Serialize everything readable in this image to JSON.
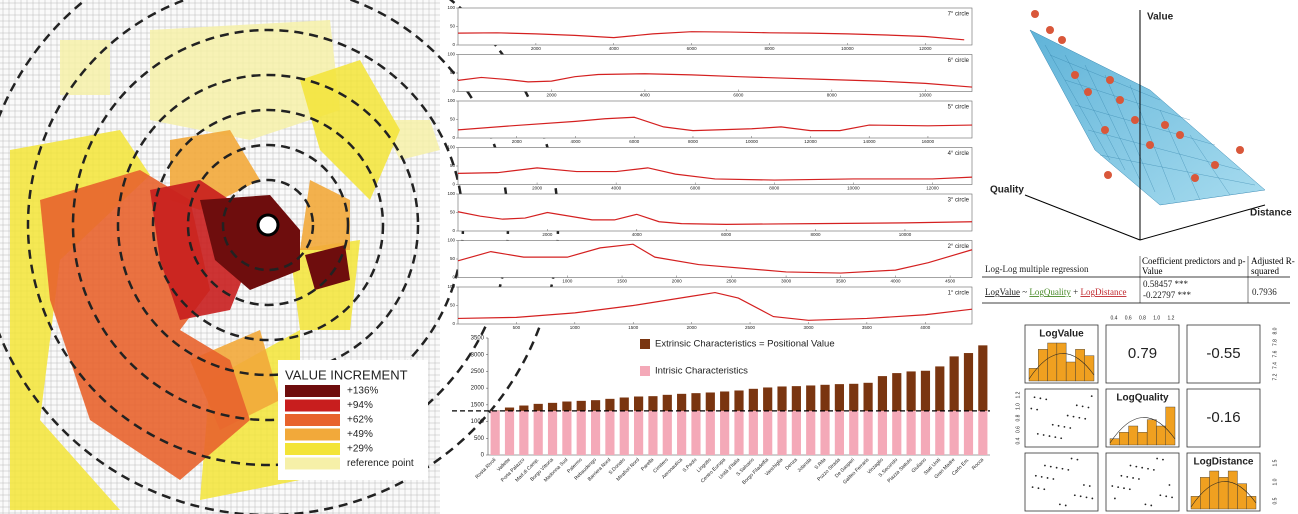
{
  "map": {
    "legend_title": "VALUE INCREMENT",
    "legend": [
      {
        "label": "+136%",
        "color": "#6e0d0d"
      },
      {
        "label": "+94%",
        "color": "#c81e1e"
      },
      {
        "label": "+62%",
        "color": "#e8632c"
      },
      {
        "label": "+49%",
        "color": "#f2a93a"
      },
      {
        "label": "+29%",
        "color": "#f3e436"
      },
      {
        "label": "reference point",
        "color": "#f6f0a8"
      }
    ]
  },
  "chart_data": [
    {
      "type": "line",
      "title": "7° circle",
      "color": "#d42020",
      "xlim": [
        0,
        13200
      ],
      "ylim": [
        0,
        100
      ],
      "yticks": [
        0,
        50,
        100
      ],
      "xticks": [
        2000,
        4000,
        6000,
        8000,
        10000,
        12000
      ],
      "x": [
        0,
        1000,
        2000,
        3000,
        4000,
        5000,
        6000,
        7000,
        8000,
        9000,
        10000,
        11000,
        12000,
        13000
      ],
      "values": [
        32,
        33,
        30,
        26,
        20,
        30,
        36,
        35,
        33,
        32,
        30,
        27,
        23,
        14
      ]
    },
    {
      "type": "line",
      "title": "6° circle",
      "color": "#d42020",
      "xlim": [
        0,
        11000
      ],
      "ylim": [
        0,
        100
      ],
      "yticks": [
        0,
        50,
        100
      ],
      "xticks": [
        2000,
        4000,
        6000,
        8000,
        10000
      ],
      "x": [
        0,
        500,
        1000,
        1500,
        2000,
        2500,
        3000,
        4000,
        5000,
        6000,
        7000,
        8000,
        9000,
        10000,
        11000
      ],
      "values": [
        30,
        38,
        33,
        26,
        28,
        40,
        46,
        48,
        45,
        40,
        36,
        32,
        28,
        22,
        12
      ]
    },
    {
      "type": "line",
      "title": "5° circle",
      "color": "#d42020",
      "xlim": [
        0,
        17500
      ],
      "ylim": [
        0,
        100
      ],
      "yticks": [
        0,
        50,
        100
      ],
      "xticks": [
        2000,
        4000,
        6000,
        8000,
        10000,
        12000,
        14000,
        16000
      ],
      "x": [
        0,
        2000,
        4000,
        5000,
        6000,
        7000,
        8000,
        10000,
        11000,
        12000,
        13000,
        14000,
        16000,
        17500
      ],
      "values": [
        22,
        34,
        45,
        52,
        56,
        30,
        20,
        25,
        30,
        20,
        20,
        35,
        33,
        35
      ]
    },
    {
      "type": "line",
      "title": "4° circle",
      "color": "#d42020",
      "xlim": [
        0,
        13000
      ],
      "ylim": [
        0,
        100
      ],
      "yticks": [
        0,
        50,
        100
      ],
      "xticks": [
        2000,
        4000,
        6000,
        8000,
        10000,
        12000
      ],
      "x": [
        0,
        1000,
        2000,
        3000,
        4000,
        4800,
        5500,
        6500,
        8000,
        10000,
        12000,
        13000
      ],
      "values": [
        30,
        32,
        45,
        35,
        35,
        45,
        28,
        15,
        12,
        15,
        15,
        20
      ]
    },
    {
      "type": "line",
      "title": "3° circle",
      "color": "#d42020",
      "xlim": [
        0,
        11500
      ],
      "ylim": [
        0,
        100
      ],
      "yticks": [
        0,
        50,
        100
      ],
      "xticks": [
        2000,
        4000,
        6000,
        8000,
        10000
      ],
      "x": [
        0,
        500,
        1000,
        1500,
        2000,
        3000,
        3500,
        4000,
        4500,
        5000,
        6000,
        8000,
        10000,
        11500
      ],
      "values": [
        52,
        40,
        32,
        35,
        50,
        30,
        30,
        45,
        25,
        20,
        18,
        20,
        22,
        25
      ]
    },
    {
      "type": "line",
      "title": "2° circle",
      "color": "#d42020",
      "xlim": [
        0,
        4700
      ],
      "ylim": [
        0,
        100
      ],
      "yticks": [
        0,
        50,
        100
      ],
      "xticks": [
        1000,
        1500,
        2000,
        2500,
        3000,
        3500,
        4000,
        4500
      ],
      "x": [
        0,
        300,
        600,
        1000,
        1300,
        1600,
        1800,
        2200,
        3000,
        3500,
        4000,
        4300,
        4700
      ],
      "values": [
        45,
        70,
        55,
        55,
        80,
        90,
        55,
        35,
        15,
        12,
        20,
        40,
        75
      ]
    },
    {
      "type": "line",
      "title": "1° circle",
      "color": "#d42020",
      "xlim": [
        0,
        4400
      ],
      "ylim": [
        0,
        100
      ],
      "yticks": [
        0,
        50,
        100
      ],
      "xticks": [
        500,
        1000,
        1500,
        2000,
        2500,
        3000,
        3500,
        4000
      ],
      "x": [
        0,
        500,
        1000,
        1500,
        2000,
        2200,
        2400,
        2700,
        3000,
        3500,
        4000,
        4400
      ],
      "values": [
        15,
        18,
        30,
        50,
        75,
        85,
        70,
        20,
        10,
        15,
        25,
        40
      ]
    },
    {
      "type": "stacked_bar",
      "ylim": [
        0,
        3500
      ],
      "yticks": [
        0,
        500,
        1000,
        1500,
        2000,
        2500,
        3000,
        3500
      ],
      "reference_line": 1320,
      "categories": [
        "Rosta Rivoli",
        "Vallette",
        "Porta Palazzo",
        "Mad.di Camp.",
        "Borgo Vittoria",
        "Madonna Sud",
        "Palermo",
        "Rebaudengo",
        "Barriera Nord",
        "S.Donato",
        "Mirafiori Nord",
        "Parella",
        "Cimitero",
        "Aeronautica",
        "S.Paolo",
        "Lingotto",
        "Centro Europa",
        "Unità d'Italia",
        "S.Salvario",
        "Borgo Filadelfia",
        "Vanchiglia",
        "Denza",
        "Jolanda",
        "S.Rita",
        "Pozzo Strada",
        "De Gasperi",
        "Galileo Ferraris",
        "Vinzaglio",
        "S.Secondo",
        "Piazza Statuto",
        "Giuliano",
        "Stati Uniti",
        "Gran Madre",
        "Carlo Em.",
        "Rocca"
      ],
      "series": [
        {
          "name": "Intrisic Characteristics",
          "color": "#f4a9b8",
          "values": [
            1320,
            1320,
            1320,
            1320,
            1320,
            1320,
            1320,
            1320,
            1320,
            1320,
            1320,
            1320,
            1320,
            1320,
            1320,
            1320,
            1320,
            1320,
            1320,
            1320,
            1320,
            1320,
            1320,
            1320,
            1320,
            1320,
            1320,
            1320,
            1320,
            1320,
            1320,
            1320,
            1320,
            1320,
            1320
          ]
        },
        {
          "name": "Extrinsic Characteristics = Positional Value",
          "color": "#7a3510",
          "values": [
            10,
            100,
            160,
            210,
            240,
            280,
            300,
            320,
            360,
            400,
            430,
            440,
            480,
            510,
            530,
            550,
            580,
            610,
            660,
            700,
            730,
            740,
            760,
            780,
            800,
            810,
            840,
            1040,
            1130,
            1180,
            1200,
            1330,
            1630,
            1730,
            1960
          ]
        }
      ]
    }
  ],
  "surface": {
    "axes": [
      "Value",
      "Quality",
      "Distance"
    ]
  },
  "table": {
    "header": [
      "Log-Log multiple regression",
      "Coefficient predictors and p-Value",
      "Adjusted R-squared"
    ],
    "formula": [
      "LogValue",
      "~",
      "LogQuality",
      "+",
      "LogDistance"
    ],
    "coefficients": [
      "0.58457 ***",
      "-0.22797 ***"
    ],
    "r_squared": "0.7936"
  },
  "pairs": {
    "variables": [
      "LogValue",
      "LogQuality",
      "LogDistance"
    ],
    "correlations": [
      "0.79",
      "-0.55",
      "-0.16"
    ],
    "histograms": [
      [
        2,
        5,
        6,
        6,
        3,
        5,
        4
      ],
      [
        1,
        2,
        3,
        2,
        4,
        3,
        6
      ],
      [
        2,
        5,
        6,
        5,
        6,
        4,
        2
      ]
    ],
    "top_ticks": [
      "0.4",
      "0.6",
      "0.8",
      "1.0",
      "1.2"
    ],
    "right_ticks_1": [
      "7.2",
      "7.4",
      "7.6",
      "7.8",
      "8.0"
    ],
    "left_ticks_2": [
      "0.4",
      "0.6",
      "0.8",
      "1.0",
      "1.2"
    ],
    "right_ticks_3": [
      "0.5",
      "1.0",
      "1.5"
    ]
  }
}
